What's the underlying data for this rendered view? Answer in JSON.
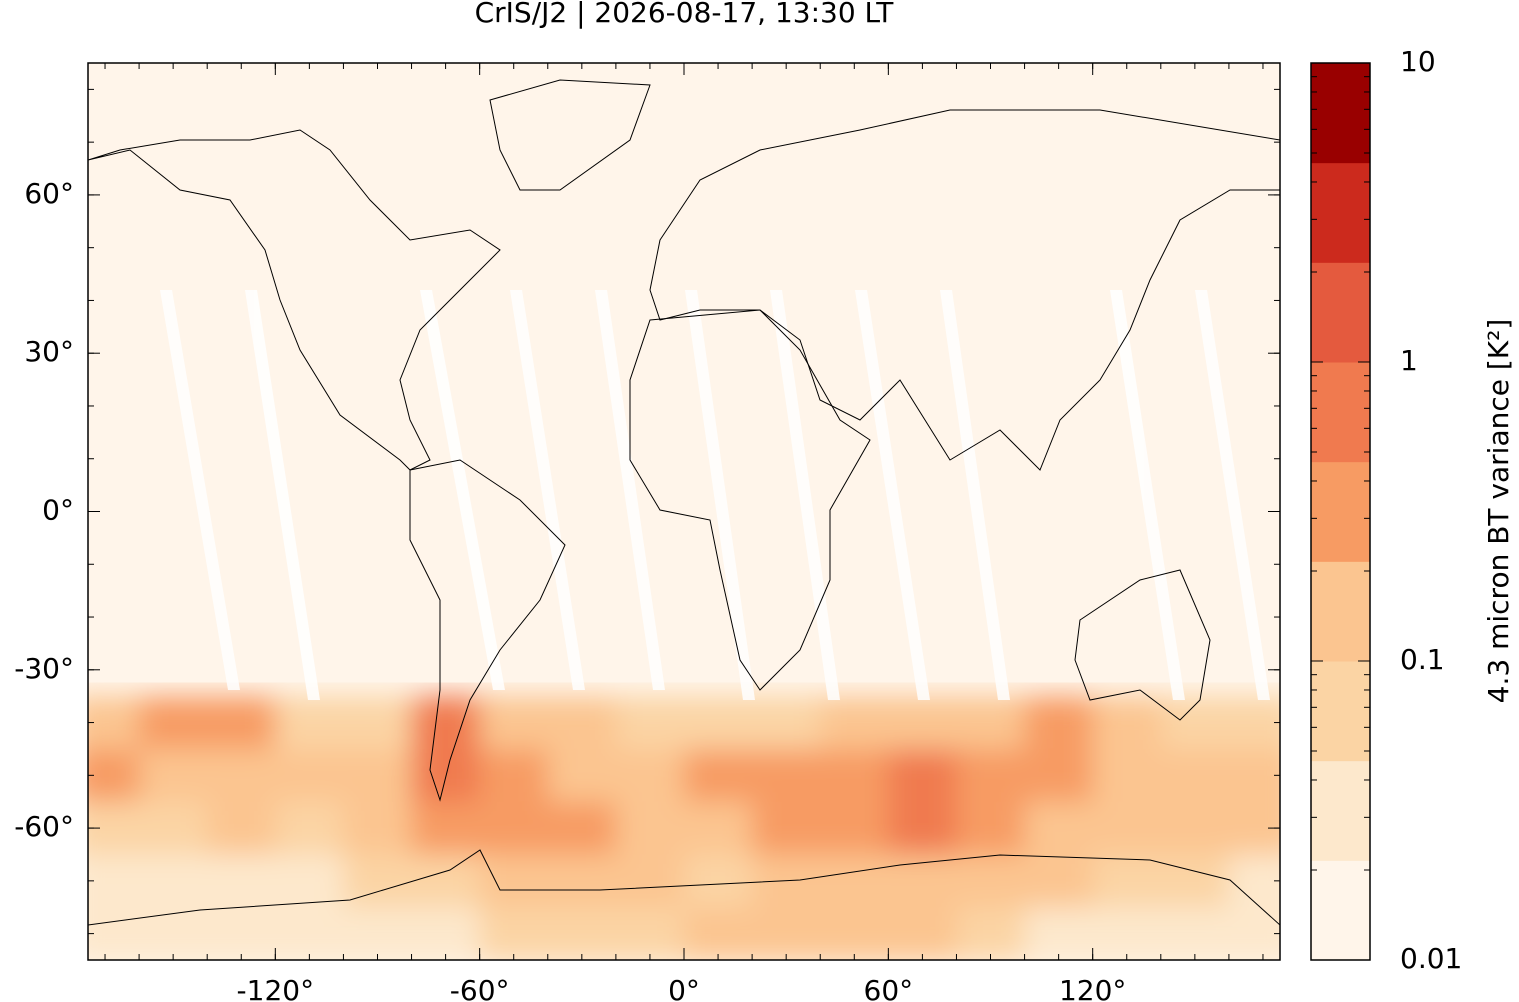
{
  "chart_data": {
    "type": "map",
    "title": "CrIS/J2 | 2026-08-17, 13:30 LT",
    "xlim": [
      -175,
      175
    ],
    "ylim": [
      -85,
      85
    ],
    "xticks": [
      {
        "value": -120,
        "label": "-120°"
      },
      {
        "value": -60,
        "label": "-60°"
      },
      {
        "value": 0,
        "label": "0°"
      },
      {
        "value": 60,
        "label": "60°"
      },
      {
        "value": 120,
        "label": "120°"
      }
    ],
    "yticks": [
      {
        "value": 60,
        "label": "60°"
      },
      {
        "value": 30,
        "label": "30°"
      },
      {
        "value": 0,
        "label": "0°"
      },
      {
        "value": -30,
        "label": "-30°"
      },
      {
        "value": -60,
        "label": "-60°"
      }
    ],
    "field": {
      "lons": [
        -170,
        -150,
        -130,
        -110,
        -90,
        -70,
        -50,
        -30,
        -10,
        10,
        30,
        50,
        70,
        90,
        110,
        130,
        150,
        170
      ],
      "lats": [
        -40,
        -50,
        -60,
        -70,
        -80
      ],
      "values": [
        [
          0.15,
          0.3,
          0.3,
          0.08,
          0.05,
          0.5,
          0.2,
          0.1,
          0.05,
          0.05,
          0.05,
          0.1,
          0.1,
          0.1,
          0.4,
          0.15,
          0.08,
          0.08
        ],
        [
          0.4,
          0.1,
          0.15,
          0.1,
          0.1,
          0.6,
          0.4,
          0.2,
          0.2,
          0.3,
          0.3,
          0.3,
          0.5,
          0.3,
          0.4,
          0.2,
          0.15,
          0.2
        ],
        [
          0.05,
          0.05,
          0.1,
          0.05,
          0.15,
          0.3,
          0.4,
          0.3,
          0.1,
          0.2,
          0.25,
          0.4,
          0.8,
          0.3,
          0.2,
          0.15,
          0.1,
          0.1
        ],
        [
          0.03,
          0.03,
          0.03,
          0.03,
          0.05,
          0.05,
          0.2,
          0.15,
          0.1,
          0.05,
          0.1,
          0.15,
          0.2,
          0.15,
          0.1,
          0.05,
          0.05,
          0.03
        ],
        [
          0.03,
          0.03,
          0.03,
          0.04,
          0.04,
          0.04,
          0.05,
          0.05,
          0.08,
          0.1,
          0.2,
          0.1,
          0.1,
          0.05,
          0.04,
          0.03,
          0.03,
          0.03
        ]
      ]
    },
    "colorbar": {
      "label": "4.3 micron BT variance [K²]",
      "log": true,
      "lim": [
        0.01,
        10
      ],
      "ticks": [
        0.01,
        0.1,
        1,
        10
      ],
      "colors": [
        "#fff5ea",
        "#fde8cc",
        "#fbd4a4",
        "#fbc590",
        "#f79b63",
        "#f07a4f",
        "#e45a3e",
        "#cc2a1d",
        "#990000"
      ]
    }
  }
}
